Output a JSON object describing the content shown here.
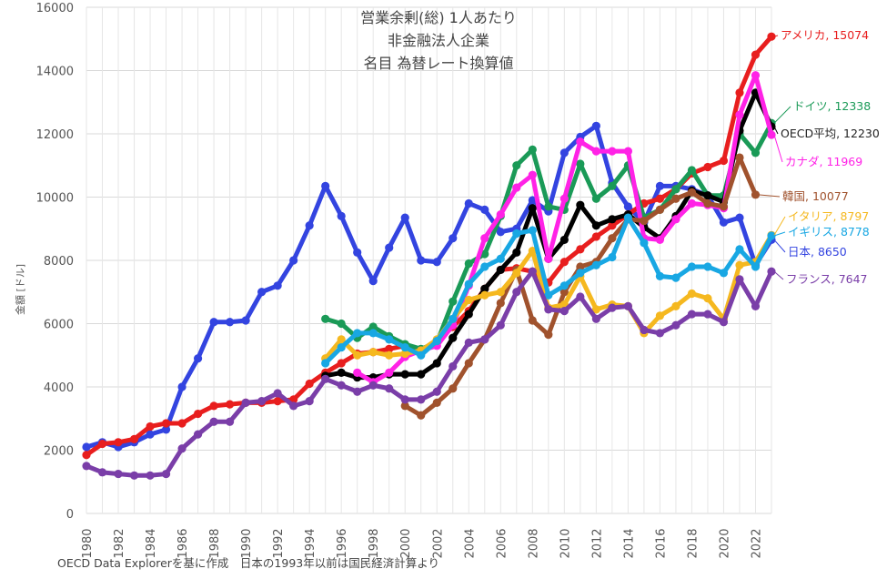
{
  "chart_data": {
    "type": "line",
    "title": [
      "営業余剰(総) 1人あたり",
      "非金融法人企業",
      "名目 為替レート換算値"
    ],
    "ylabel": "金額 [ドル]",
    "xlabel": "",
    "ylim": [
      0,
      16000
    ],
    "yticks": [
      0,
      2000,
      4000,
      6000,
      8000,
      10000,
      12000,
      14000,
      16000
    ],
    "xlim": [
      1980,
      2023
    ],
    "xticks": [
      1980,
      1982,
      1984,
      1986,
      1988,
      1990,
      1992,
      1994,
      1996,
      1998,
      2000,
      2002,
      2004,
      2006,
      2008,
      2010,
      2012,
      2014,
      2016,
      2018,
      2020,
      2022
    ],
    "grid": true,
    "footnote": "OECD Data Explorerを基に作成　日本の1993年以前は国民経済計算より",
    "series": [
      {
        "name": "日本",
        "label": "日本, 8650",
        "color": "#3344e0",
        "start": 1980,
        "values": [
          2100,
          2250,
          2100,
          2250,
          2500,
          2650,
          4000,
          4900,
          6050,
          6050,
          6100,
          7000,
          7200,
          8000,
          9100,
          10350,
          9400,
          8250,
          7350,
          8400,
          9350,
          8000,
          7950,
          8700,
          9800,
          9600,
          8900,
          9000,
          9900,
          9550,
          11400,
          11900,
          12250,
          10450,
          9700,
          9200,
          10350,
          10350,
          10250,
          10050,
          9200,
          9350,
          7850,
          8650
        ]
      },
      {
        "name": "アメリカ",
        "label": "アメリカ, 15074",
        "color": "#e81e1e",
        "start": 1980,
        "values": [
          1850,
          2200,
          2250,
          2350,
          2750,
          2850,
          2850,
          3150,
          3400,
          3450,
          3500,
          3500,
          3550,
          3600,
          4100,
          4450,
          4750,
          5050,
          5100,
          5200,
          5300,
          5150,
          5450,
          5900,
          6400,
          7100,
          7700,
          7750,
          7650,
          7300,
          7950,
          8350,
          8750,
          9100,
          9450,
          9800,
          9950,
          10250,
          10750,
          10950,
          11150,
          13300,
          14500,
          15074
        ]
      },
      {
        "name": "ドイツ",
        "label": "ドイツ, 12338",
        "color": "#1a9a57",
        "start": 1995,
        "values": [
          6150,
          6000,
          5550,
          5900,
          5600,
          5350,
          5200,
          5400,
          6700,
          7900,
          8200,
          9400,
          11000,
          11500,
          9700,
          9600,
          11050,
          9950,
          10350,
          11000,
          9350,
          9600,
          10250,
          10850,
          10050,
          10050,
          12000,
          11400,
          12338
        ]
      },
      {
        "name": "OECD平均",
        "label": "OECD平均, 12230",
        "color": "#000000",
        "start": 1995,
        "values": [
          4350,
          4450,
          4300,
          4300,
          4400,
          4400,
          4400,
          4750,
          5550,
          6300,
          7100,
          7700,
          8250,
          9650,
          8050,
          8650,
          9750,
          9100,
          9300,
          9450,
          9050,
          8700,
          9400,
          10200,
          10050,
          9850,
          12100,
          13300,
          12230
        ]
      },
      {
        "name": "カナダ",
        "label": "カナダ, 11969",
        "color": "#ff22e6",
        "start": 1997,
        "values": [
          4450,
          4150,
          4450,
          4950,
          5150,
          5300,
          5950,
          7200,
          8700,
          9450,
          10300,
          10700,
          8050,
          9950,
          11750,
          11450,
          11450,
          11450,
          8700,
          8650,
          9300,
          9800,
          9750,
          9650,
          12600,
          13850,
          11969
        ]
      },
      {
        "name": "韓国",
        "label": "韓国, 10077",
        "color": "#a0522d",
        "start": 2000,
        "values": [
          3400,
          3100,
          3500,
          3950,
          4750,
          5500,
          6650,
          7700,
          6100,
          5650,
          7000,
          7800,
          7950,
          8700,
          9300,
          9250,
          9600,
          9950,
          10150,
          9800,
          9700,
          11250,
          10077
        ]
      },
      {
        "name": "イタリア",
        "label": "イタリア, 8797",
        "color": "#f5b81f",
        "start": 1995,
        "values": [
          4900,
          5500,
          5000,
          5100,
          5000,
          5050,
          5150,
          5500,
          6150,
          6750,
          6900,
          7000,
          7600,
          8300,
          6500,
          6600,
          7500,
          6450,
          6600,
          6550,
          5700,
          6250,
          6550,
          6950,
          6800,
          6150,
          7850,
          7950,
          8797
        ]
      },
      {
        "name": "イギリス",
        "label": "イギリス, 8778",
        "color": "#18a7e3",
        "start": 1995,
        "values": [
          4750,
          5250,
          5700,
          5700,
          5500,
          5250,
          5000,
          5450,
          6150,
          7250,
          7800,
          8050,
          8850,
          8950,
          6900,
          7200,
          7600,
          7850,
          8100,
          9350,
          8550,
          7500,
          7450,
          7800,
          7800,
          7600,
          8350,
          7800,
          8778
        ]
      },
      {
        "name": "フランス",
        "label": "フランス, 7647",
        "color": "#7a3ea8",
        "start": 1980,
        "values": [
          1500,
          1300,
          1250,
          1200,
          1200,
          1250,
          2050,
          2500,
          2900,
          2900,
          3500,
          3550,
          3800,
          3400,
          3550,
          4250,
          4050,
          3850,
          4050,
          3950,
          3600,
          3600,
          3850,
          4650,
          5400,
          5500,
          5950,
          7000,
          7650,
          6450,
          6400,
          6850,
          6150,
          6500,
          6550,
          5800,
          5700,
          5950,
          6300,
          6300,
          6050,
          7400,
          6550,
          7647
        ]
      }
    ]
  }
}
